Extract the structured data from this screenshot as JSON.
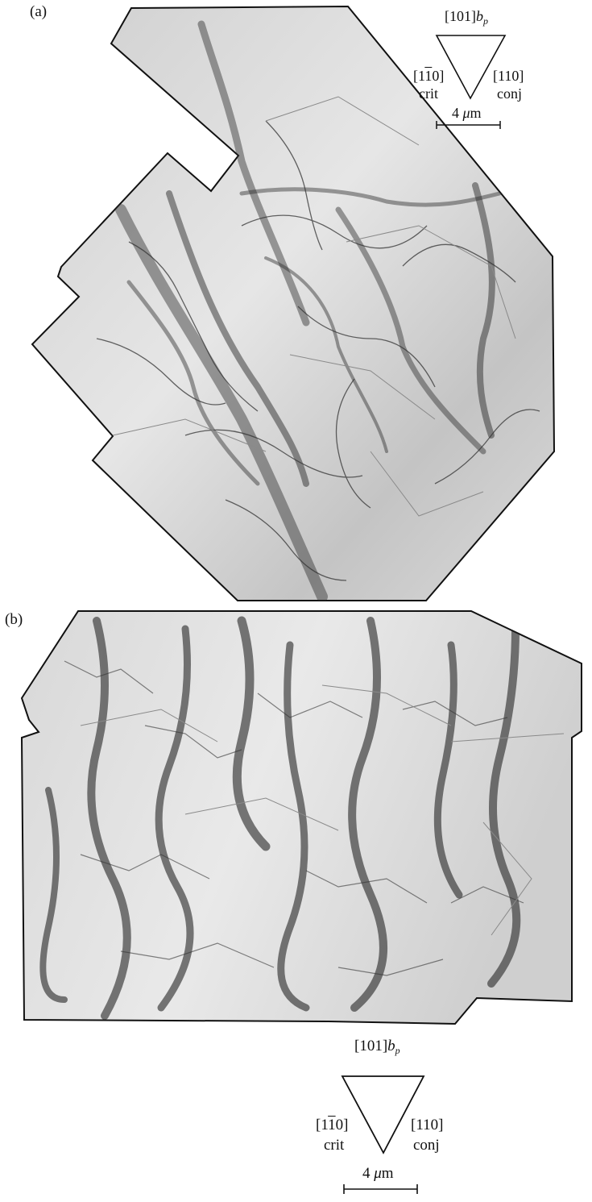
{
  "panels": [
    {
      "label": "(a)",
      "triad": {
        "top_label": "[101]",
        "top_b": "b",
        "top_sub": "p",
        "left_dir_pre": "[1",
        "left_dir_bar": "1",
        "left_dir_post": "0]",
        "left_name": "crit",
        "right_dir": "[110]",
        "right_name": "conj"
      },
      "scale_bar": {
        "num": "4 ",
        "mu": "μ",
        "unit": "m"
      }
    },
    {
      "label": "(b)",
      "triad": {
        "top_label": "[101]",
        "top_b": "b",
        "top_sub": "p",
        "left_dir_pre": "[1",
        "left_dir_bar": "1",
        "left_dir_post": "0]",
        "left_name": "crit",
        "right_dir": "[110]",
        "right_name": "conj"
      },
      "scale_bar": {
        "num": "4 ",
        "mu": "μ",
        "unit": "m"
      }
    }
  ],
  "colors": {
    "ink": "#111111",
    "dislocation": "#2b2b2b",
    "background_tone": "#d6d6d6"
  }
}
